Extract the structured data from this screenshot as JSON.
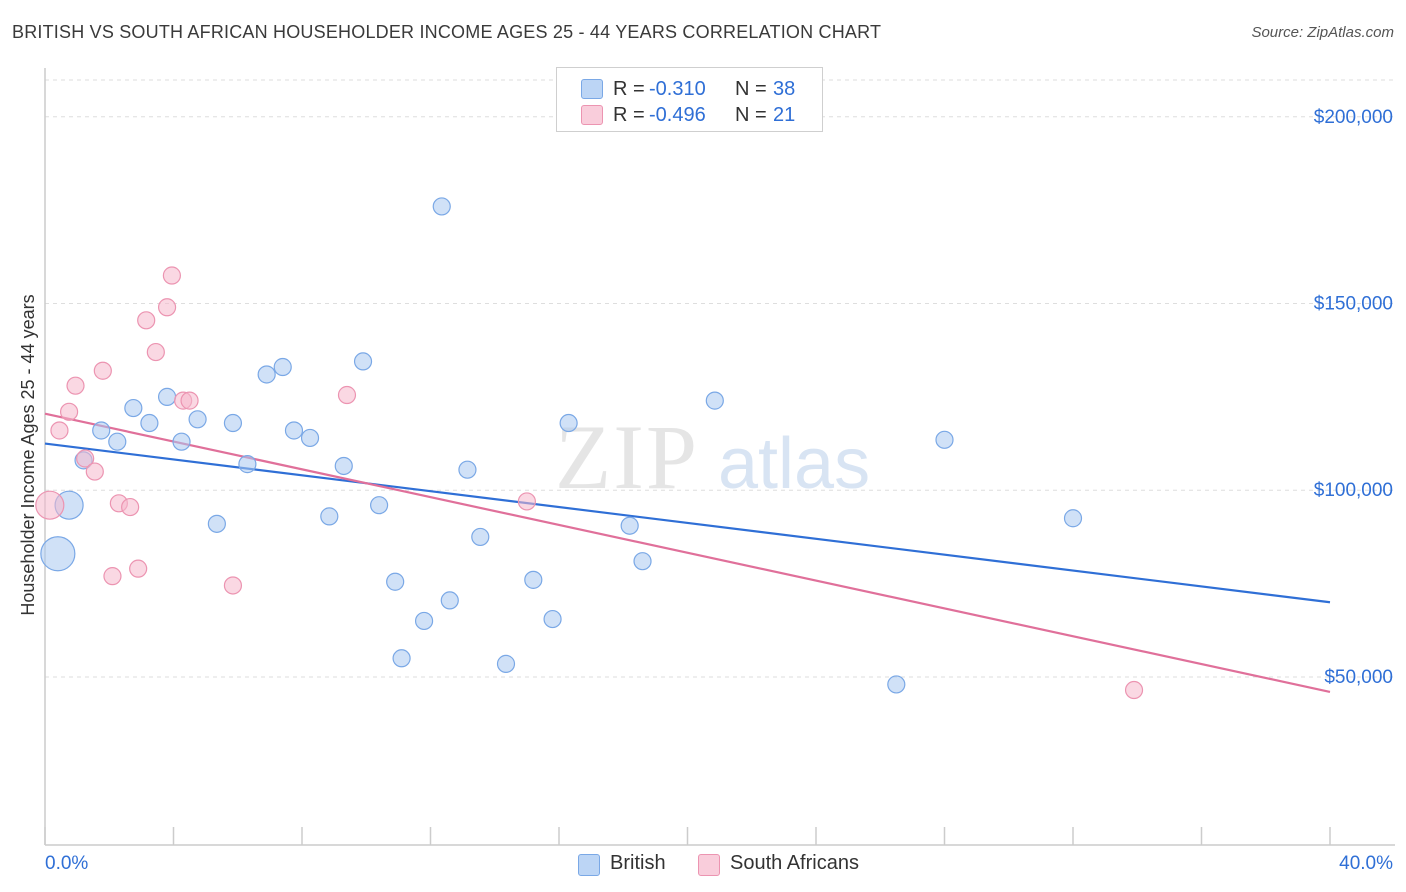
{
  "title": "BRITISH VS SOUTH AFRICAN HOUSEHOLDER INCOME AGES 25 - 44 YEARS CORRELATION CHART",
  "source": "Source: ZipAtlas.com",
  "watermark": {
    "zip": "ZIP",
    "atlas": "atlas"
  },
  "legend": {
    "rows": [
      {
        "r_label": "R =",
        "r_value": "-0.310",
        "n_label": "N =",
        "n_value": "38",
        "color": "#a9c8f0"
      },
      {
        "r_label": "R =",
        "r_value": "-0.496",
        "n_label": "N =",
        "n_value": "21",
        "color": "#f5b8cc"
      }
    ]
  },
  "bottom_legend": [
    {
      "label": "British",
      "color": "#a9c8f0"
    },
    {
      "label": "South Africans",
      "color": "#f5b8cc"
    }
  ],
  "colors": {
    "british": "#2f6fd6",
    "south_africans": "#e0709a",
    "axis_text": "#2f6fd6"
  },
  "chart_data": {
    "type": "scatter",
    "title": "BRITISH VS SOUTH AFRICAN HOUSEHOLDER INCOME AGES 25 - 44 YEARS CORRELATION CHART",
    "xlabel": "",
    "ylabel": "Householder Income Ages 25 - 44 years",
    "xlim": [
      0,
      40
    ],
    "ylim": [
      5000,
      212000
    ],
    "x_tick_labels": [
      "0.0%",
      "40.0%"
    ],
    "y_ticks": [
      50000,
      100000,
      150000,
      200000
    ],
    "y_tick_labels": [
      "$50,000",
      "$100,000",
      "$150,000",
      "$200,000"
    ],
    "grid": true,
    "series": [
      {
        "name": "British",
        "color": "#a9c8f0",
        "stroke": "#7aa8e6",
        "trend": {
          "x": [
            0,
            40
          ],
          "y": [
            112500,
            70000
          ],
          "color": "#2f6fd6"
        },
        "points": [
          {
            "x": 0.4,
            "y": 83000,
            "size": "large"
          },
          {
            "x": 0.75,
            "y": 96000,
            "size": "medium"
          },
          {
            "x": 1.2,
            "y": 108000
          },
          {
            "x": 1.75,
            "y": 116000
          },
          {
            "x": 2.25,
            "y": 113000
          },
          {
            "x": 2.75,
            "y": 122000
          },
          {
            "x": 3.25,
            "y": 118000
          },
          {
            "x": 3.8,
            "y": 125000
          },
          {
            "x": 4.25,
            "y": 113000
          },
          {
            "x": 4.75,
            "y": 119000
          },
          {
            "x": 5.35,
            "y": 91000
          },
          {
            "x": 5.85,
            "y": 118000
          },
          {
            "x": 6.3,
            "y": 107000
          },
          {
            "x": 6.9,
            "y": 131000
          },
          {
            "x": 7.4,
            "y": 133000
          },
          {
            "x": 7.75,
            "y": 116000
          },
          {
            "x": 8.25,
            "y": 114000
          },
          {
            "x": 8.85,
            "y": 93000
          },
          {
            "x": 9.3,
            "y": 106500
          },
          {
            "x": 9.9,
            "y": 134500
          },
          {
            "x": 10.4,
            "y": 96000
          },
          {
            "x": 10.9,
            "y": 75500
          },
          {
            "x": 11.1,
            "y": 55000
          },
          {
            "x": 11.8,
            "y": 65000
          },
          {
            "x": 12.35,
            "y": 176000
          },
          {
            "x": 12.6,
            "y": 70500
          },
          {
            "x": 13.15,
            "y": 105500
          },
          {
            "x": 13.55,
            "y": 87500
          },
          {
            "x": 14.35,
            "y": 53500
          },
          {
            "x": 15.2,
            "y": 76000
          },
          {
            "x": 15.8,
            "y": 65500
          },
          {
            "x": 16.3,
            "y": 118000
          },
          {
            "x": 18.2,
            "y": 90500
          },
          {
            "x": 18.6,
            "y": 81000
          },
          {
            "x": 20.85,
            "y": 124000
          },
          {
            "x": 26.5,
            "y": 48000
          },
          {
            "x": 28.0,
            "y": 113500
          },
          {
            "x": 32.0,
            "y": 92500
          }
        ]
      },
      {
        "name": "South Africans",
        "color": "#f5b8cc",
        "stroke": "#ec94b1",
        "trend": {
          "x": [
            0,
            40
          ],
          "y": [
            120500,
            46000
          ],
          "color": "#e0709a"
        },
        "points": [
          {
            "x": 0.15,
            "y": 96000,
            "size": "medium"
          },
          {
            "x": 0.45,
            "y": 116000
          },
          {
            "x": 0.75,
            "y": 121000
          },
          {
            "x": 0.95,
            "y": 128000
          },
          {
            "x": 1.25,
            "y": 108500
          },
          {
            "x": 1.55,
            "y": 105000
          },
          {
            "x": 1.8,
            "y": 132000
          },
          {
            "x": 2.1,
            "y": 77000
          },
          {
            "x": 2.3,
            "y": 96500
          },
          {
            "x": 2.65,
            "y": 95500
          },
          {
            "x": 2.9,
            "y": 79000
          },
          {
            "x": 3.15,
            "y": 145500
          },
          {
            "x": 3.45,
            "y": 137000
          },
          {
            "x": 3.8,
            "y": 149000
          },
          {
            "x": 3.95,
            "y": 157500
          },
          {
            "x": 4.3,
            "y": 124000
          },
          {
            "x": 4.5,
            "y": 124000
          },
          {
            "x": 5.85,
            "y": 74500
          },
          {
            "x": 9.4,
            "y": 125500
          },
          {
            "x": 15.0,
            "y": 97000
          },
          {
            "x": 33.9,
            "y": 46500
          }
        ]
      }
    ]
  }
}
